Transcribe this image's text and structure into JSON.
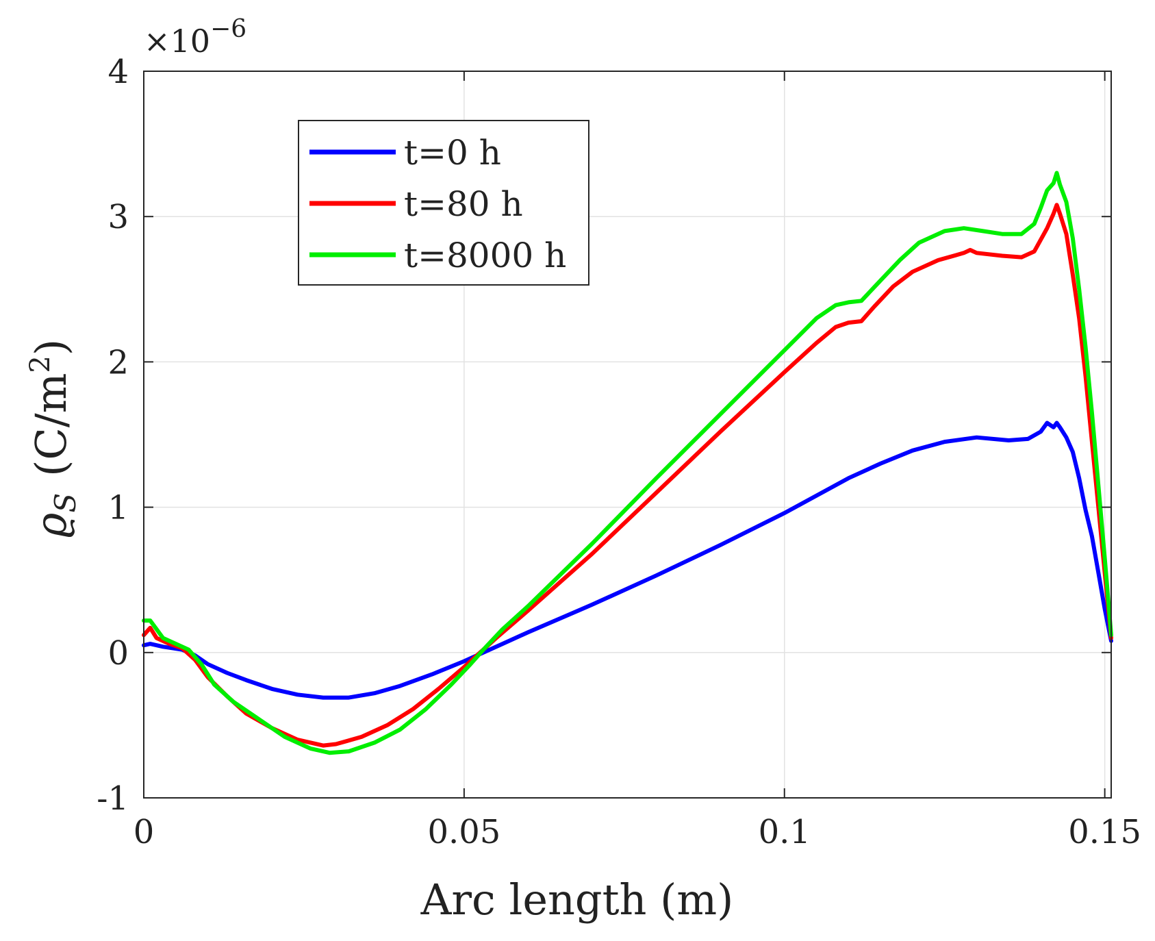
{
  "chart_data": {
    "type": "line",
    "title": "",
    "xlabel": "Arc length (m)",
    "ylabel_symbol": "ϱ",
    "ylabel_subscript": "S",
    "ylabel_unit": "(C/m",
    "ylabel_unit_exp": "2",
    "ylabel_unit_close": ")",
    "y_multiplier_base": "×10",
    "y_multiplier_exp": "−6",
    "xlim": [
      0,
      0.151
    ],
    "ylim": [
      -1,
      4
    ],
    "xticks": [
      0,
      0.05,
      0.1,
      0.15
    ],
    "xtick_labels": [
      "0",
      "0.05",
      "0.1",
      "0.15"
    ],
    "yticks": [
      -1,
      0,
      1,
      2,
      3,
      4
    ],
    "ytick_labels": [
      "-1",
      "0",
      "1",
      "2",
      "3",
      "4"
    ],
    "grid": true,
    "legend_position": "top-left",
    "series": [
      {
        "name": "t=0 h",
        "color": "#0000ff",
        "points": [
          [
            0,
            0.05
          ],
          [
            0.001,
            0.06
          ],
          [
            0.003,
            0.04
          ],
          [
            0.006,
            0.02
          ],
          [
            0.008,
            -0.02
          ],
          [
            0.01,
            -0.08
          ],
          [
            0.013,
            -0.14
          ],
          [
            0.016,
            -0.19
          ],
          [
            0.02,
            -0.25
          ],
          [
            0.024,
            -0.29
          ],
          [
            0.028,
            -0.31
          ],
          [
            0.032,
            -0.31
          ],
          [
            0.036,
            -0.28
          ],
          [
            0.04,
            -0.23
          ],
          [
            0.045,
            -0.15
          ],
          [
            0.05,
            -0.06
          ],
          [
            0.052,
            -0.02
          ],
          [
            0.056,
            0.06
          ],
          [
            0.06,
            0.14
          ],
          [
            0.07,
            0.33
          ],
          [
            0.08,
            0.53
          ],
          [
            0.09,
            0.74
          ],
          [
            0.1,
            0.96
          ],
          [
            0.11,
            1.2
          ],
          [
            0.115,
            1.3
          ],
          [
            0.12,
            1.39
          ],
          [
            0.125,
            1.45
          ],
          [
            0.13,
            1.48
          ],
          [
            0.135,
            1.46
          ],
          [
            0.138,
            1.47
          ],
          [
            0.14,
            1.52
          ],
          [
            0.141,
            1.58
          ],
          [
            0.142,
            1.55
          ],
          [
            0.1425,
            1.58
          ],
          [
            0.143,
            1.55
          ],
          [
            0.144,
            1.48
          ],
          [
            0.145,
            1.38
          ],
          [
            0.146,
            1.2
          ],
          [
            0.147,
            0.98
          ],
          [
            0.148,
            0.8
          ],
          [
            0.149,
            0.55
          ],
          [
            0.15,
            0.3
          ],
          [
            0.151,
            0.08
          ]
        ]
      },
      {
        "name": "t=80 h",
        "color": "#ff0000",
        "points": [
          [
            0,
            0.12
          ],
          [
            0.001,
            0.17
          ],
          [
            0.002,
            0.1
          ],
          [
            0.004,
            0.06
          ],
          [
            0.006,
            0.03
          ],
          [
            0.008,
            -0.05
          ],
          [
            0.01,
            -0.17
          ],
          [
            0.013,
            -0.3
          ],
          [
            0.016,
            -0.42
          ],
          [
            0.02,
            -0.52
          ],
          [
            0.024,
            -0.6
          ],
          [
            0.028,
            -0.64
          ],
          [
            0.03,
            -0.63
          ],
          [
            0.034,
            -0.58
          ],
          [
            0.038,
            -0.5
          ],
          [
            0.042,
            -0.39
          ],
          [
            0.046,
            -0.25
          ],
          [
            0.05,
            -0.1
          ],
          [
            0.052,
            -0.02
          ],
          [
            0.055,
            0.1
          ],
          [
            0.06,
            0.29
          ],
          [
            0.07,
            0.68
          ],
          [
            0.08,
            1.1
          ],
          [
            0.09,
            1.52
          ],
          [
            0.1,
            1.93
          ],
          [
            0.105,
            2.13
          ],
          [
            0.108,
            2.24
          ],
          [
            0.11,
            2.27
          ],
          [
            0.112,
            2.28
          ],
          [
            0.114,
            2.38
          ],
          [
            0.117,
            2.52
          ],
          [
            0.12,
            2.62
          ],
          [
            0.124,
            2.7
          ],
          [
            0.128,
            2.75
          ],
          [
            0.129,
            2.77
          ],
          [
            0.13,
            2.75
          ],
          [
            0.134,
            2.73
          ],
          [
            0.137,
            2.72
          ],
          [
            0.139,
            2.76
          ],
          [
            0.141,
            2.92
          ],
          [
            0.142,
            3.02
          ],
          [
            0.1425,
            3.08
          ],
          [
            0.143,
            3.02
          ],
          [
            0.144,
            2.88
          ],
          [
            0.145,
            2.6
          ],
          [
            0.146,
            2.3
          ],
          [
            0.147,
            1.9
          ],
          [
            0.148,
            1.45
          ],
          [
            0.149,
            1.0
          ],
          [
            0.15,
            0.55
          ],
          [
            0.151,
            0.1
          ]
        ]
      },
      {
        "name": "t=8000 h",
        "color": "#00ee00",
        "points": [
          [
            0,
            0.22
          ],
          [
            0.001,
            0.22
          ],
          [
            0.002,
            0.16
          ],
          [
            0.003,
            0.1
          ],
          [
            0.005,
            0.06
          ],
          [
            0.007,
            0.02
          ],
          [
            0.009,
            -0.08
          ],
          [
            0.011,
            -0.22
          ],
          [
            0.014,
            -0.34
          ],
          [
            0.018,
            -0.46
          ],
          [
            0.022,
            -0.58
          ],
          [
            0.026,
            -0.66
          ],
          [
            0.029,
            -0.69
          ],
          [
            0.032,
            -0.68
          ],
          [
            0.036,
            -0.62
          ],
          [
            0.04,
            -0.53
          ],
          [
            0.044,
            -0.39
          ],
          [
            0.048,
            -0.22
          ],
          [
            0.051,
            -0.08
          ],
          [
            0.053,
            0.02
          ],
          [
            0.056,
            0.16
          ],
          [
            0.06,
            0.32
          ],
          [
            0.07,
            0.75
          ],
          [
            0.08,
            1.2
          ],
          [
            0.09,
            1.64
          ],
          [
            0.1,
            2.08
          ],
          [
            0.105,
            2.3
          ],
          [
            0.108,
            2.39
          ],
          [
            0.11,
            2.41
          ],
          [
            0.112,
            2.42
          ],
          [
            0.115,
            2.56
          ],
          [
            0.118,
            2.7
          ],
          [
            0.121,
            2.82
          ],
          [
            0.125,
            2.9
          ],
          [
            0.128,
            2.92
          ],
          [
            0.131,
            2.9
          ],
          [
            0.134,
            2.88
          ],
          [
            0.137,
            2.88
          ],
          [
            0.139,
            2.95
          ],
          [
            0.14,
            3.06
          ],
          [
            0.141,
            3.18
          ],
          [
            0.142,
            3.23
          ],
          [
            0.1425,
            3.3
          ],
          [
            0.143,
            3.22
          ],
          [
            0.144,
            3.1
          ],
          [
            0.145,
            2.85
          ],
          [
            0.146,
            2.5
          ],
          [
            0.147,
            2.1
          ],
          [
            0.148,
            1.65
          ],
          [
            0.149,
            1.15
          ],
          [
            0.15,
            0.65
          ],
          [
            0.151,
            0.12
          ]
        ]
      }
    ]
  }
}
